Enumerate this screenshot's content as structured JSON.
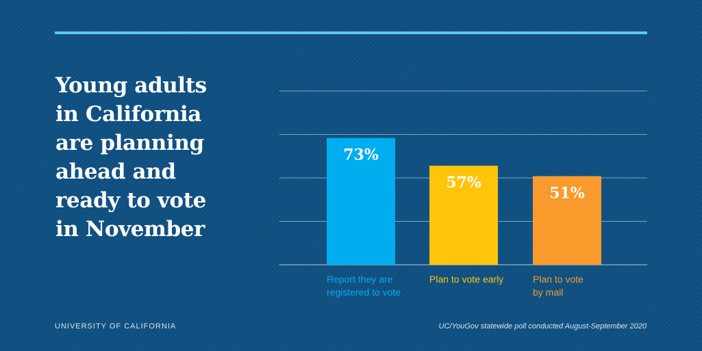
{
  "headline_lines": [
    "Young adults",
    "in California",
    "are planning",
    "ahead and",
    "ready to vote",
    "in November"
  ],
  "footer": {
    "org": "UNIVERSITY OF CALIFORNIA",
    "source": "UC/YouGov statewide poll conducted August-September 2020"
  },
  "colors": {
    "background": "#0f4f80",
    "accent_rule": "#5fc6f1",
    "grid": "#c9d8e6",
    "bar_1": "#00adee",
    "bar_2": "#ffc50a",
    "bar_3": "#f89a2c"
  },
  "chart_data": {
    "type": "bar",
    "categories": [
      [
        "Report they are",
        "registered to vote"
      ],
      [
        "Plan to vote early"
      ],
      [
        "Plan to vote",
        "by mail"
      ]
    ],
    "values": [
      73,
      57,
      51
    ],
    "value_labels": [
      "73%",
      "57%",
      "51%"
    ],
    "unit": "%",
    "ylim": [
      0,
      100
    ],
    "gridlines": [
      0,
      25,
      50,
      75,
      100
    ],
    "grid": true,
    "xlabel": "",
    "ylabel": ""
  }
}
